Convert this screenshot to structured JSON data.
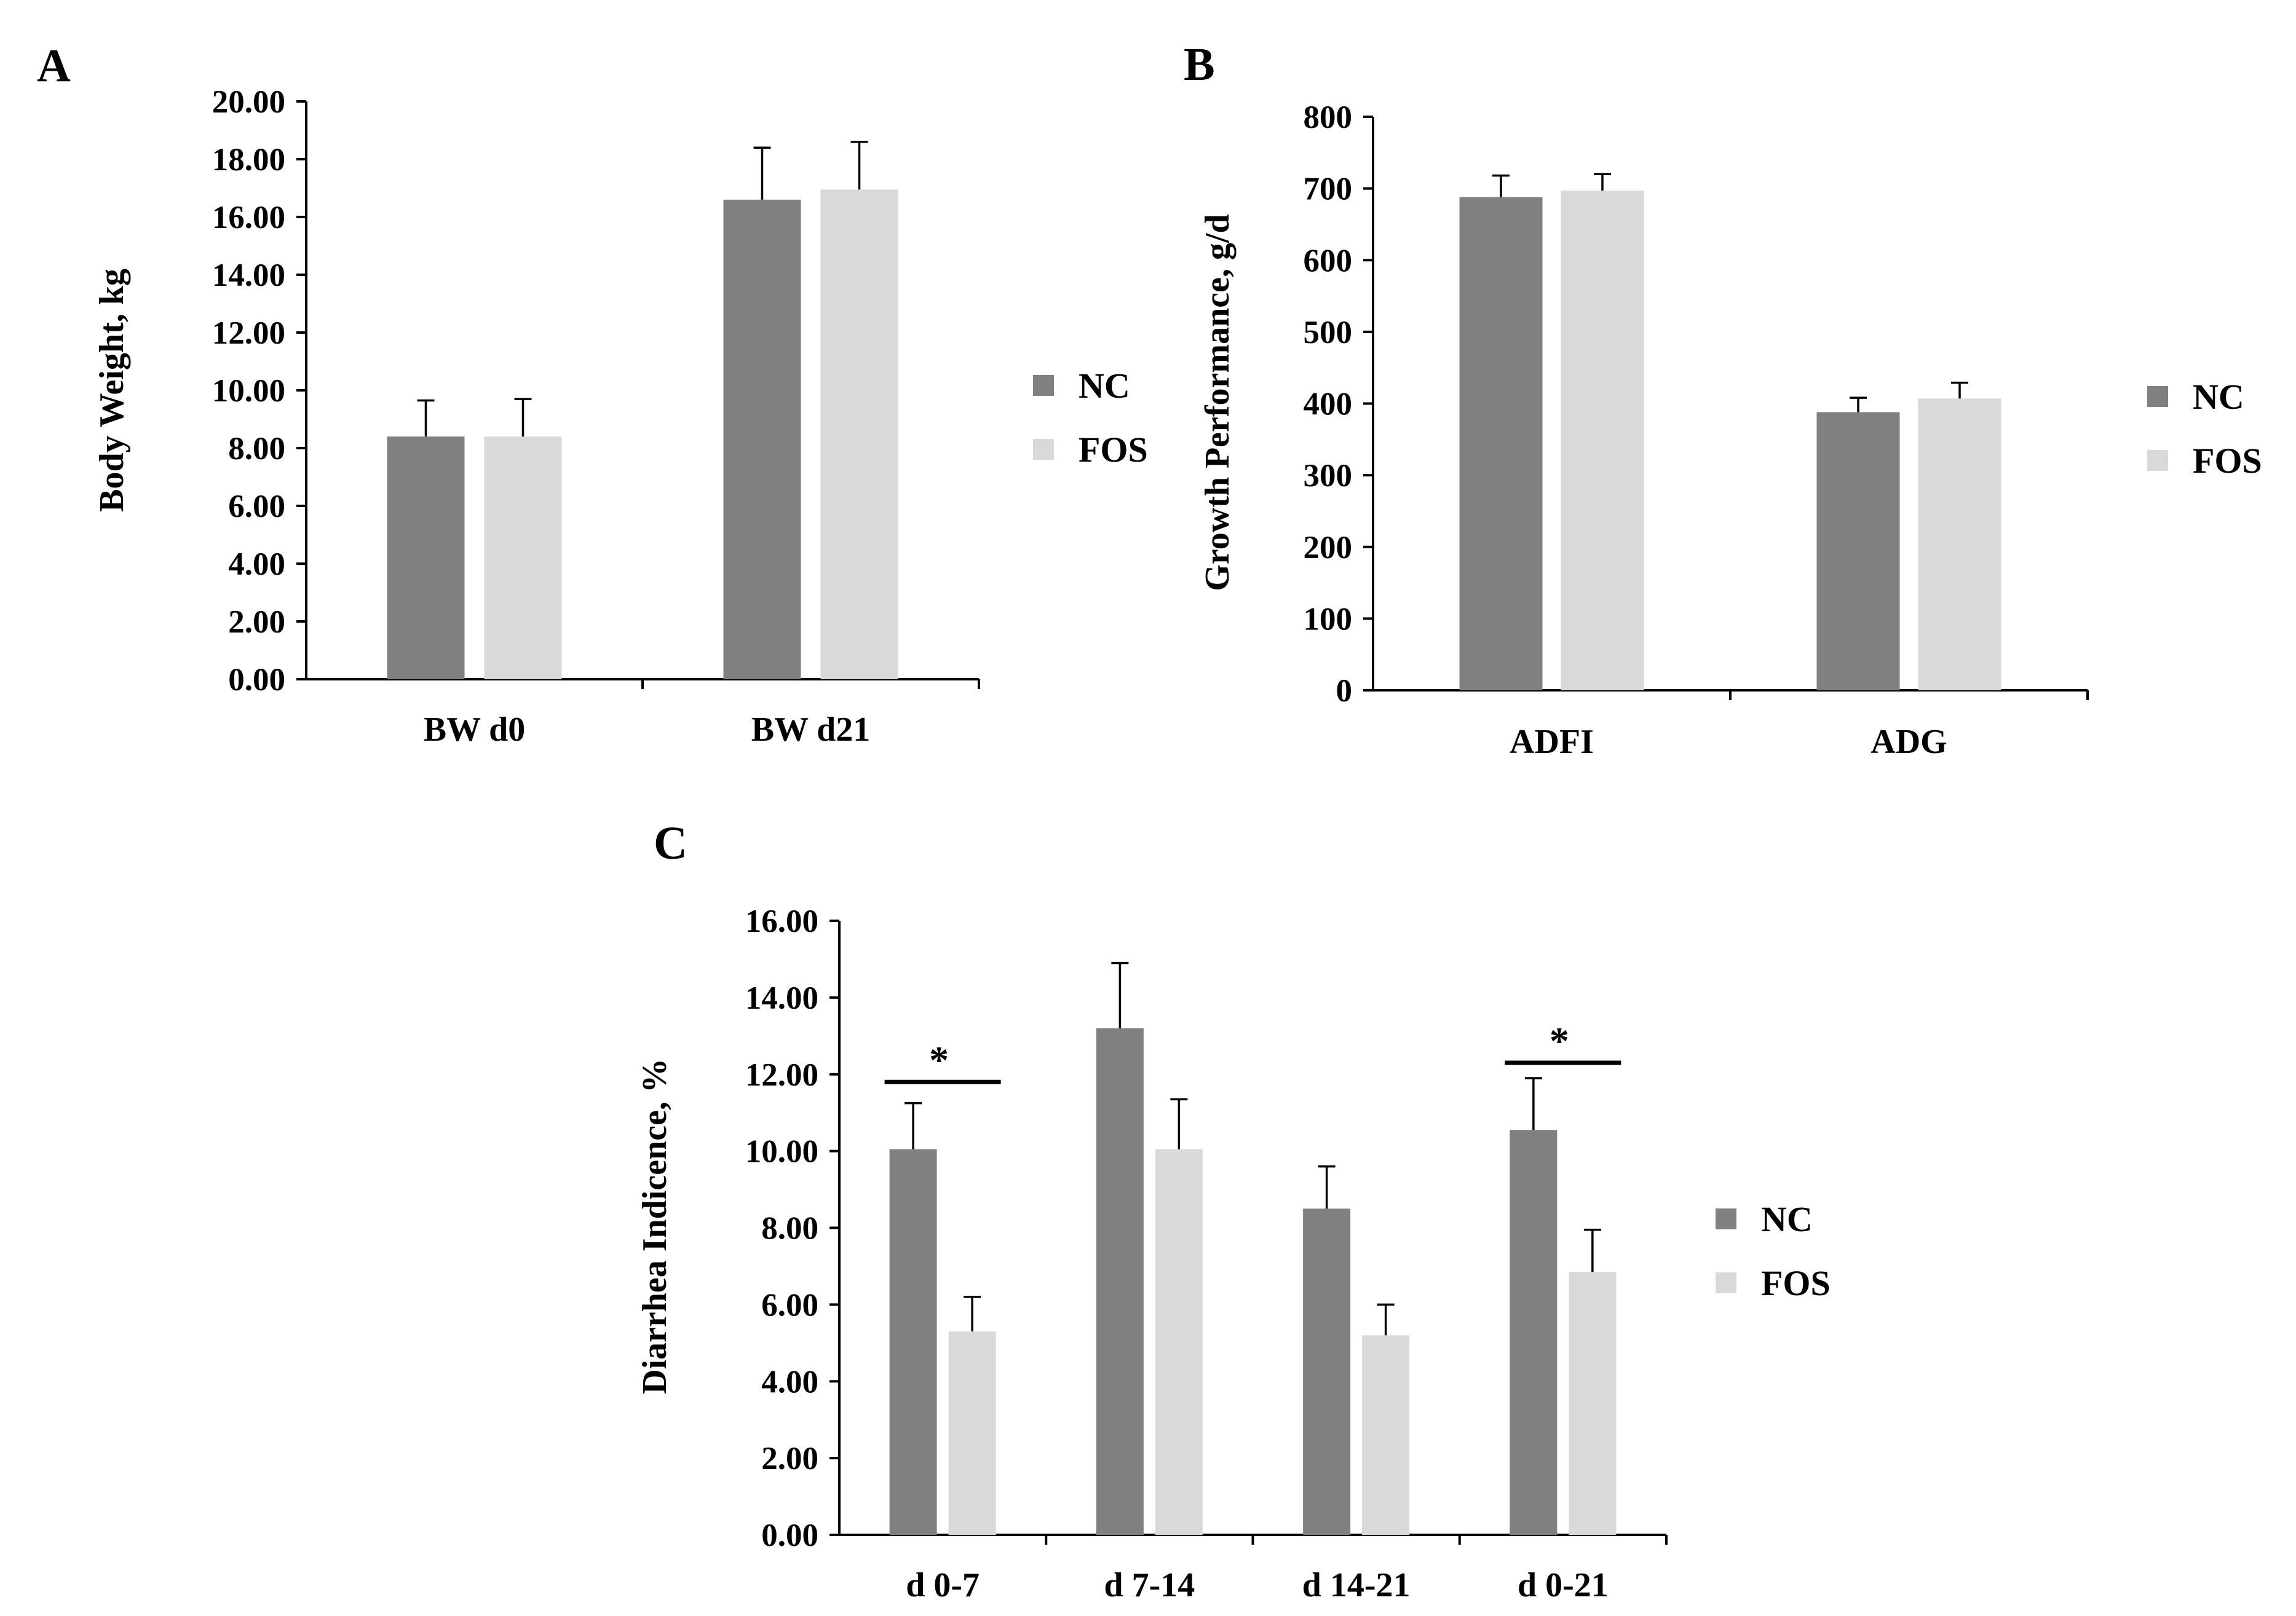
{
  "chart_data": [
    {
      "panel": "A",
      "type": "bar",
      "title": "",
      "xlabel": "",
      "ylabel": "Body Weight, kg",
      "ylim": [
        0,
        20
      ],
      "yticks": [
        "0.00",
        "2.00",
        "4.00",
        "6.00",
        "8.00",
        "10.00",
        "12.00",
        "14.00",
        "16.00",
        "18.00",
        "20.00"
      ],
      "grid": false,
      "legend_position": "right",
      "categories": [
        "BW d0",
        "BW d21"
      ],
      "series": [
        {
          "name": "NC",
          "color": "#808080",
          "values": [
            8.4,
            16.6
          ],
          "errors": [
            1.25,
            1.8
          ]
        },
        {
          "name": "FOS",
          "color": "#d9d9d9",
          "values": [
            8.4,
            16.95
          ],
          "errors": [
            1.3,
            1.65
          ]
        }
      ],
      "significance": []
    },
    {
      "panel": "B",
      "type": "bar",
      "title": "",
      "xlabel": "",
      "ylabel": "Growth Performance, g/d",
      "ylim": [
        0,
        800
      ],
      "yticks": [
        "0",
        "100",
        "200",
        "300",
        "400",
        "500",
        "600",
        "700",
        "800"
      ],
      "grid": false,
      "legend_position": "right",
      "categories": [
        "ADFI",
        "ADG"
      ],
      "series": [
        {
          "name": "NC",
          "color": "#808080",
          "values": [
            688,
            388
          ],
          "errors": [
            30,
            20
          ]
        },
        {
          "name": "FOS",
          "color": "#d9d9d9",
          "values": [
            697,
            407
          ],
          "errors": [
            23,
            22
          ]
        }
      ],
      "significance": []
    },
    {
      "panel": "C",
      "type": "bar",
      "title": "",
      "xlabel": "",
      "ylabel": "Diarrhea Indicence, %",
      "ylim": [
        0,
        16
      ],
      "yticks": [
        "0.00",
        "2.00",
        "4.00",
        "6.00",
        "8.00",
        "10.00",
        "12.00",
        "14.00",
        "16.00"
      ],
      "grid": false,
      "legend_position": "right",
      "categories": [
        "d 0-7",
        "d 7-14",
        "d 14-21",
        "d 0-21"
      ],
      "series": [
        {
          "name": "NC",
          "color": "#808080",
          "values": [
            10.05,
            13.2,
            8.5,
            10.55
          ],
          "errors": [
            1.2,
            1.7,
            1.1,
            1.35
          ]
        },
        {
          "name": "FOS",
          "color": "#d9d9d9",
          "values": [
            5.3,
            10.05,
            5.2,
            6.85
          ],
          "errors": [
            0.9,
            1.3,
            0.8,
            1.1
          ]
        }
      ],
      "significance": [
        {
          "category_index": 0,
          "label": "*",
          "y": 11.8
        },
        {
          "category_index": 3,
          "label": "*",
          "y": 12.3
        }
      ]
    }
  ]
}
